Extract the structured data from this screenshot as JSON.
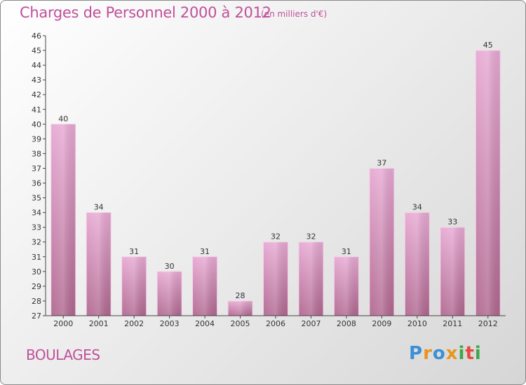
{
  "header": {
    "title": "Charges de Personnel 2000 à 2012",
    "subtitle": "(en milliers d'€)"
  },
  "commune": "BOULAGES",
  "logo": {
    "text": "Proxiti",
    "colors": [
      "#3a8fd6",
      "#e8951e",
      "#3a8fd6",
      "#e8951e",
      "#3fa64a",
      "#e54a3c",
      "#3fa64a"
    ]
  },
  "chart_data": {
    "type": "bar",
    "categories": [
      "2000",
      "2001",
      "2002",
      "2003",
      "2004",
      "2005",
      "2006",
      "2007",
      "2008",
      "2009",
      "2010",
      "2011",
      "2012"
    ],
    "values": [
      40,
      34,
      31,
      30,
      31,
      28,
      32,
      32,
      31,
      37,
      34,
      33,
      45
    ],
    "ylim": [
      27,
      46
    ],
    "yticks": [
      27,
      28,
      29,
      30,
      31,
      32,
      33,
      34,
      35,
      36,
      37,
      38,
      39,
      40,
      41,
      42,
      43,
      44,
      45,
      46
    ],
    "bar_color": "#d98bbd",
    "grid": false,
    "title": "Charges de Personnel 2000 à 2012",
    "xlabel": "",
    "ylabel": ""
  }
}
